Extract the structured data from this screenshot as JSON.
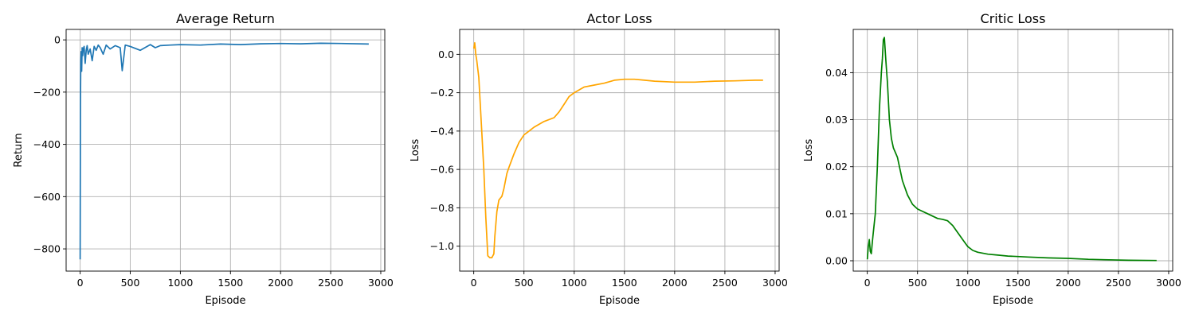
{
  "chart_data": [
    {
      "type": "line",
      "title": "Average Return",
      "xlabel": "Episode",
      "ylabel": "Return",
      "xlim": [
        -140,
        3040
      ],
      "ylim": [
        -885,
        40
      ],
      "xticks": [
        0,
        500,
        1000,
        1500,
        2000,
        2500,
        3000
      ],
      "xtick_labels": [
        "0",
        "500",
        "1000",
        "1500",
        "2000",
        "2500",
        "3000"
      ],
      "yticks": [
        -800,
        -600,
        -400,
        -200,
        0
      ],
      "ytick_labels": [
        "−800",
        "−600",
        "−400",
        "−200",
        "0"
      ],
      "grid": true,
      "series": [
        {
          "color": "#1f77b4",
          "x": [
            0,
            3,
            6,
            10,
            15,
            20,
            25,
            30,
            40,
            50,
            60,
            70,
            80,
            100,
            120,
            140,
            160,
            180,
            200,
            230,
            260,
            300,
            350,
            400,
            420,
            450,
            500,
            600,
            700,
            750,
            800,
            900,
            1000,
            1200,
            1400,
            1600,
            1800,
            2000,
            2200,
            2400,
            2600,
            2880
          ],
          "values": [
            -840,
            -250,
            -80,
            -45,
            -120,
            -30,
            -60,
            -35,
            -25,
            -90,
            -40,
            -22,
            -55,
            -35,
            -80,
            -25,
            -40,
            -20,
            -30,
            -55,
            -20,
            -35,
            -22,
            -30,
            -118,
            -20,
            -25,
            -40,
            -18,
            -30,
            -22,
            -20,
            -18,
            -20,
            -16,
            -18,
            -15,
            -14,
            -15,
            -13,
            -14,
            -16
          ]
        }
      ]
    },
    {
      "type": "line",
      "title": "Actor Loss",
      "xlabel": "Episode",
      "ylabel": "Loss",
      "xlim": [
        -140,
        3040
      ],
      "ylim": [
        -1.13,
        0.13
      ],
      "xticks": [
        0,
        500,
        1000,
        1500,
        2000,
        2500,
        3000
      ],
      "xtick_labels": [
        "0",
        "500",
        "1000",
        "1500",
        "2000",
        "2500",
        "3000"
      ],
      "yticks": [
        -1.0,
        -0.8,
        -0.6,
        -0.4,
        -0.2,
        0.0
      ],
      "ytick_labels": [
        "−1.0",
        "−0.8",
        "−0.6",
        "−0.4",
        "−0.2",
        "0.0"
      ],
      "grid": true,
      "series": [
        {
          "color": "#ffa500",
          "x": [
            0,
            10,
            20,
            30,
            50,
            80,
            100,
            120,
            140,
            160,
            180,
            200,
            210,
            230,
            250,
            280,
            300,
            330,
            350,
            400,
            450,
            500,
            550,
            600,
            700,
            800,
            850,
            900,
            950,
            1000,
            1100,
            1200,
            1300,
            1400,
            1500,
            1600,
            1700,
            1800,
            2000,
            2200,
            2400,
            2600,
            2800,
            2880
          ],
          "values": [
            0.03,
            0.06,
            0.0,
            -0.03,
            -0.12,
            -0.4,
            -0.6,
            -0.85,
            -1.05,
            -1.06,
            -1.06,
            -1.04,
            -0.95,
            -0.82,
            -0.76,
            -0.74,
            -0.7,
            -0.62,
            -0.59,
            -0.52,
            -0.46,
            -0.42,
            -0.4,
            -0.38,
            -0.35,
            -0.33,
            -0.3,
            -0.26,
            -0.22,
            -0.2,
            -0.17,
            -0.16,
            -0.15,
            -0.135,
            -0.13,
            -0.13,
            -0.135,
            -0.14,
            -0.145,
            -0.145,
            -0.14,
            -0.138,
            -0.135,
            -0.135
          ]
        }
      ]
    },
    {
      "type": "line",
      "title": "Critic Loss",
      "xlabel": "Episode",
      "ylabel": "Loss",
      "xlim": [
        -140,
        3040
      ],
      "ylim": [
        -0.0022,
        0.0492
      ],
      "xticks": [
        0,
        500,
        1000,
        1500,
        2000,
        2500,
        3000
      ],
      "xtick_labels": [
        "0",
        "500",
        "1000",
        "1500",
        "2000",
        "2500",
        "3000"
      ],
      "yticks": [
        0.0,
        0.01,
        0.02,
        0.03,
        0.04
      ],
      "ytick_labels": [
        "0.00",
        "0.01",
        "0.02",
        "0.03",
        "0.04"
      ],
      "grid": true,
      "series": [
        {
          "color": "#008000",
          "x": [
            0,
            10,
            20,
            30,
            40,
            50,
            60,
            80,
            100,
            120,
            140,
            150,
            160,
            170,
            180,
            190,
            200,
            220,
            240,
            260,
            280,
            300,
            350,
            400,
            450,
            500,
            550,
            600,
            650,
            700,
            750,
            800,
            850,
            900,
            950,
            1000,
            1050,
            1100,
            1200,
            1300,
            1400,
            1500,
            1600,
            1800,
            2000,
            2200,
            2400,
            2600,
            2880
          ],
          "values": [
            0.0003,
            0.003,
            0.0045,
            0.002,
            0.0015,
            0.004,
            0.006,
            0.01,
            0.02,
            0.032,
            0.04,
            0.043,
            0.047,
            0.0475,
            0.044,
            0.041,
            0.038,
            0.03,
            0.026,
            0.024,
            0.023,
            0.022,
            0.017,
            0.014,
            0.012,
            0.011,
            0.0105,
            0.01,
            0.0095,
            0.009,
            0.0088,
            0.0085,
            0.0075,
            0.006,
            0.0045,
            0.003,
            0.0022,
            0.0018,
            0.0014,
            0.0012,
            0.001,
            0.0009,
            0.0008,
            0.0006,
            0.0005,
            0.0003,
            0.0002,
            0.0001,
            5e-05
          ]
        }
      ]
    }
  ]
}
